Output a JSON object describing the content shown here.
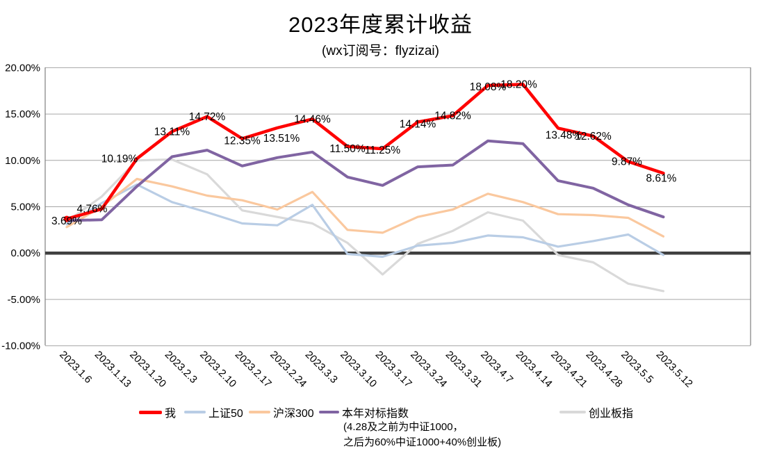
{
  "header": {
    "title": "2023年度累计收益",
    "subtitle": "(wx订阅号：flyzizai)"
  },
  "chart_data": {
    "type": "line",
    "title": "2023年度累计收益",
    "subtitle": "(wx订阅号：flyzizai)",
    "categories": [
      "2023.1.6",
      "2023.1.13",
      "2023.1.20",
      "2023.2.3",
      "2023.2.10",
      "2023.2.17",
      "2023.2.24",
      "2023.3.3",
      "2023.3.10",
      "2023.3.17",
      "2023.3.24",
      "2023.3.31",
      "2023.4.7",
      "2023.4.14",
      "2023.4.21",
      "2023.4.28",
      "2023.5.5",
      "2023.5.12"
    ],
    "series": [
      {
        "name": "创业板指",
        "color": "#D9D9D9",
        "values": [
          3.4,
          6.1,
          10.0,
          10.1,
          8.5,
          4.6,
          3.9,
          3.2,
          1.1,
          -2.3,
          1.0,
          2.4,
          4.4,
          3.5,
          -0.2,
          -1.0,
          -3.3,
          -4.1
        ]
      },
      {
        "name": "上证50",
        "color": "#B9CDE5",
        "values": [
          3.1,
          5.4,
          7.4,
          5.5,
          4.4,
          3.2,
          3.0,
          5.2,
          -0.1,
          -0.4,
          0.8,
          1.1,
          1.9,
          1.7,
          0.7,
          1.3,
          2.0,
          -0.2
        ]
      },
      {
        "name": "沪深300",
        "color": "#FAC89E",
        "values": [
          2.8,
          5.0,
          8.0,
          7.2,
          6.2,
          5.7,
          4.7,
          6.6,
          2.5,
          2.2,
          3.9,
          4.7,
          6.4,
          5.5,
          4.2,
          4.1,
          3.8,
          1.8
        ]
      },
      {
        "name": "本年对标指数",
        "color": "#8064A2",
        "note_line1": "(4.28及之前为中证1000，",
        "note_line2": "之后为60%中证1000+40%创业板)",
        "values": [
          3.5,
          3.6,
          7.2,
          10.4,
          11.1,
          9.4,
          10.3,
          10.9,
          8.2,
          7.3,
          9.3,
          9.5,
          12.1,
          11.8,
          7.8,
          7.0,
          5.2,
          3.9
        ]
      },
      {
        "name": "我",
        "color": "#FE0000",
        "values": [
          3.69,
          4.76,
          10.19,
          13.11,
          14.72,
          12.35,
          13.51,
          14.46,
          11.5,
          11.25,
          14.14,
          14.82,
          18.08,
          18.2,
          13.48,
          12.62,
          9.87,
          8.61
        ],
        "data_labels": [
          "3.69%",
          "4.76%",
          "10.19%",
          "13.11%",
          "14.72%",
          "12.35%",
          "13.51%",
          "14.46%",
          "11.50%",
          "11.25%",
          "14.14%",
          "14.82%",
          "18.08%",
          "18.20%",
          "13.48%",
          "12.62%",
          "9.87%",
          "8.61%"
        ]
      }
    ],
    "legend_order": [
      "我",
      "上证50",
      "沪深300",
      "本年对标指数",
      "创业板指"
    ],
    "ylim": [
      -10,
      20
    ],
    "ytick_step": 5,
    "yticks": [
      {
        "value": 20,
        "label": "20.00%"
      },
      {
        "value": 15,
        "label": "15.00%"
      },
      {
        "value": 10,
        "label": "10.00%"
      },
      {
        "value": 5,
        "label": "5.00%"
      },
      {
        "value": 0,
        "label": "0.00%"
      },
      {
        "value": -5,
        "label": "-5.00%"
      },
      {
        "value": -10,
        "label": "-10.00%"
      }
    ],
    "grid": true,
    "legend_position": "bottom",
    "colors": {
      "grid": "#A6A6A6",
      "plot_border": "#808080",
      "zero_axis": "#404040",
      "text": "#000000"
    }
  }
}
